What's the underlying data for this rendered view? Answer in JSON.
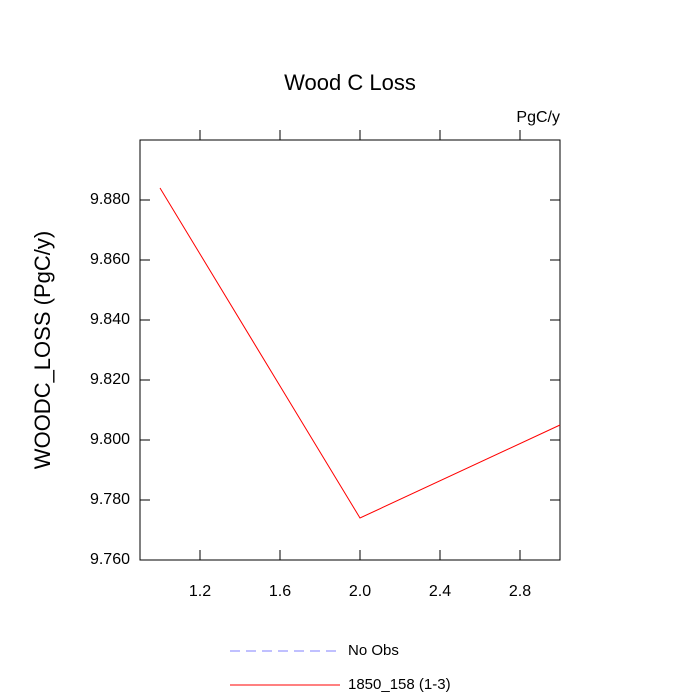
{
  "chart_data": {
    "type": "line",
    "title": "Wood C Loss",
    "units_label": "PgC/y",
    "y_label": "WOODC_LOSS  (PgC/y)",
    "x": [
      1,
      2,
      3
    ],
    "series": [
      {
        "name": "No Obs",
        "color": "#8080ff",
        "dashed": true,
        "values": [
          null,
          null,
          null
        ]
      },
      {
        "name": "1850_158 (1-3)",
        "color": "#ff0000",
        "dashed": false,
        "values": [
          9.884,
          9.774,
          9.805
        ]
      }
    ],
    "xlim": [
      0.9,
      3.0
    ],
    "xticks": [
      1.2,
      1.6,
      {
        "value": 2,
        "label": "2.0"
      },
      2.4,
      2.8
    ],
    "ylim": [
      9.76,
      9.9
    ],
    "yticks": [
      {
        "value": 9.76,
        "label": "9.760"
      },
      {
        "value": 9.78,
        "label": "9.780"
      },
      {
        "value": 9.8,
        "label": "9.800"
      },
      {
        "value": 9.82,
        "label": "9.820"
      },
      {
        "value": 9.84,
        "label": "9.840"
      },
      {
        "value": 9.86,
        "label": "9.860"
      },
      {
        "value": 9.88,
        "label": "9.880"
      }
    ],
    "grid": false,
    "legend": "bottom"
  }
}
